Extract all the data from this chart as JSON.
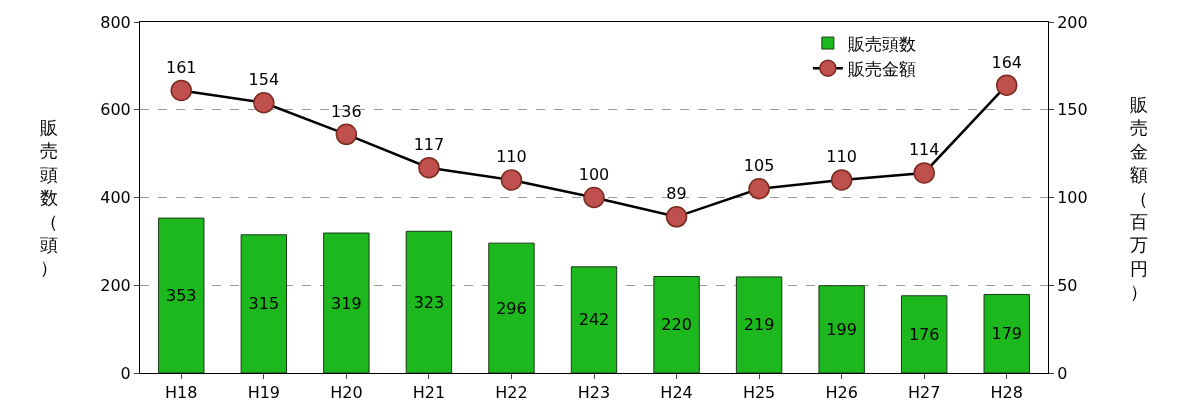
{
  "chart_data": {
    "type": "bar",
    "categories": [
      "H18",
      "H19",
      "H20",
      "H21",
      "H22",
      "H23",
      "H24",
      "H25",
      "H26",
      "H27",
      "H28"
    ],
    "series": [
      {
        "name": "販売頭数",
        "color": "#1db81d",
        "values": [
          353,
          315,
          319,
          323,
          296,
          242,
          220,
          219,
          199,
          176,
          179
        ]
      },
      {
        "name": "販売金額",
        "type": "line",
        "axis": "y2",
        "color": "#c0504d",
        "values": [
          161,
          154,
          136,
          117,
          110,
          100,
          89,
          105,
          110,
          114,
          164
        ]
      }
    ],
    "ylabel": "販売頭数（頭）",
    "y2label": "販売金額（百万円）",
    "ylim": [
      0,
      800
    ],
    "yticks": [
      0,
      200,
      400,
      600,
      800
    ],
    "y2lim": [
      0,
      200
    ],
    "y2ticks": [
      0,
      50,
      100,
      150,
      200
    ],
    "grid": "y",
    "legend": "top right",
    "marker": "circle",
    "line_style": "solid",
    "data_labels": true
  }
}
